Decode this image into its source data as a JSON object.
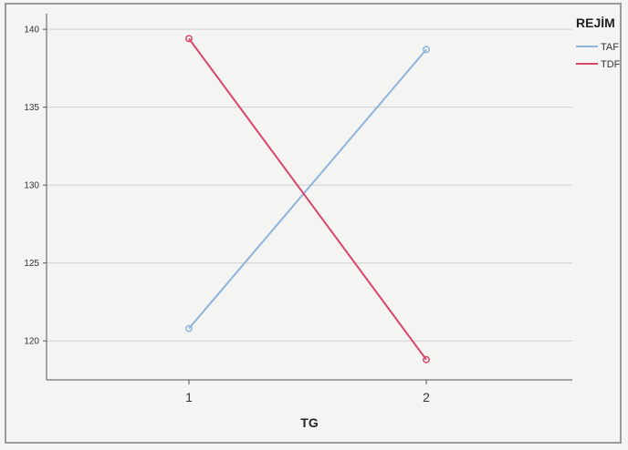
{
  "chart_data": {
    "type": "line",
    "x": [
      "1",
      "2"
    ],
    "xlabel": "TG",
    "ylabel": "",
    "ylim": [
      117.5,
      141
    ],
    "yticks": [
      120,
      125,
      130,
      135,
      140
    ],
    "grid": true,
    "legend": {
      "title": "REJİM",
      "position": "top-right"
    },
    "series": [
      {
        "name": "TAF",
        "values": [
          120.8,
          138.7
        ],
        "color": "#8fb4dc"
      },
      {
        "name": "TDF",
        "values": [
          139.4,
          118.8
        ],
        "color": "#d9466a"
      }
    ]
  }
}
